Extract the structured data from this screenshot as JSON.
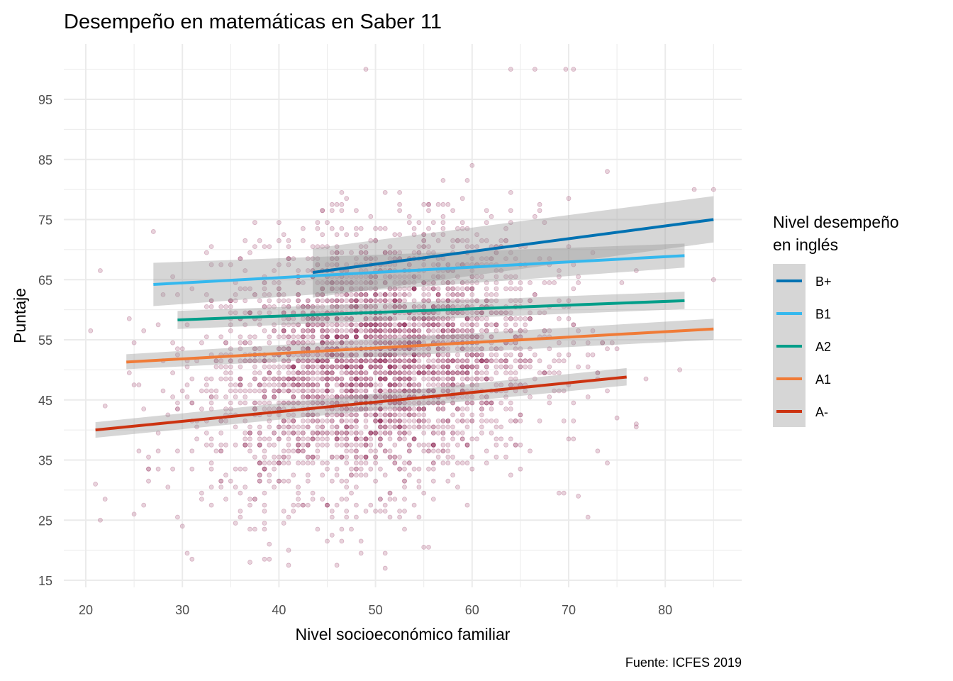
{
  "chart_data": {
    "type": "scatter",
    "title": "Desempeño en matemáticas en Saber 11",
    "xlabel": "Nivel socioeconómico familiar",
    "ylabel": "Puntaje",
    "caption": "Fuente: ICFES 2019",
    "xlim": [
      18,
      86
    ],
    "ylim": [
      14,
      102
    ],
    "x_ticks": [
      20,
      30,
      40,
      50,
      60,
      70,
      80
    ],
    "y_ticks": [
      15,
      25,
      35,
      45,
      55,
      65,
      75,
      85,
      95
    ],
    "grid": true,
    "legend": {
      "title_lines": [
        "Nivel desempeño",
        "en inglés"
      ],
      "placement": "right"
    },
    "series": [
      {
        "name": "B+",
        "color": "#0072b2",
        "fit": {
          "x": [
            43.5,
            85
          ],
          "y": [
            66.2,
            75.0
          ]
        },
        "ci": {
          "lower": [
            62.0,
            71.2
          ],
          "upper": [
            70.2,
            78.9
          ]
        }
      },
      {
        "name": "B1",
        "color": "#35b8ee",
        "fit": {
          "x": [
            27,
            82
          ],
          "y": [
            64.2,
            69.0
          ]
        },
        "ci": {
          "lower": [
            60.6,
            67.0
          ],
          "upper": [
            67.8,
            71.0
          ]
        }
      },
      {
        "name": "A2",
        "color": "#009e89",
        "fit": {
          "x": [
            29.5,
            82
          ],
          "y": [
            58.3,
            61.5
          ]
        },
        "ci": {
          "lower": [
            56.8,
            60.1
          ],
          "upper": [
            59.8,
            63.0
          ]
        }
      },
      {
        "name": "A1",
        "color": "#f07b37",
        "fit": {
          "x": [
            24.2,
            85
          ],
          "y": [
            51.3,
            56.8
          ]
        },
        "ci": {
          "lower": [
            50.1,
            55.0
          ],
          "upper": [
            52.6,
            58.5
          ]
        }
      },
      {
        "name": "A-",
        "color": "#cc3311",
        "fit": {
          "x": [
            21,
            76
          ],
          "y": [
            40.0,
            48.8
          ]
        },
        "ci": {
          "lower": [
            38.7,
            47.4
          ],
          "upper": [
            41.3,
            50.3
          ]
        }
      }
    ],
    "points": {
      "color": "#8b2252",
      "alpha": 0.2,
      "n_generated": 3400,
      "x_mean": 50,
      "x_sd": 8.5,
      "y_mean": 51,
      "y_sd": 10.5,
      "y_slope_on_x": 0.25,
      "outliers": [
        {
          "x": 49,
          "y": 100
        },
        {
          "x": 64,
          "y": 100
        },
        {
          "x": 66.5,
          "y": 100
        },
        {
          "x": 69.7,
          "y": 100
        },
        {
          "x": 70.5,
          "y": 100
        },
        {
          "x": 60,
          "y": 84
        },
        {
          "x": 74,
          "y": 83
        },
        {
          "x": 27,
          "y": 73
        },
        {
          "x": 21,
          "y": 31
        },
        {
          "x": 21.5,
          "y": 25
        },
        {
          "x": 22,
          "y": 44
        },
        {
          "x": 25,
          "y": 26
        },
        {
          "x": 37,
          "y": 18
        },
        {
          "x": 51,
          "y": 17
        },
        {
          "x": 85,
          "y": 80
        },
        {
          "x": 85,
          "y": 65
        },
        {
          "x": 83,
          "y": 80
        },
        {
          "x": 81.5,
          "y": 50
        },
        {
          "x": 77,
          "y": 41
        },
        {
          "x": 75,
          "y": 42
        },
        {
          "x": 71,
          "y": 29
        },
        {
          "x": 41,
          "y": 20
        },
        {
          "x": 39,
          "y": 21
        },
        {
          "x": 30,
          "y": 24
        }
      ]
    }
  }
}
